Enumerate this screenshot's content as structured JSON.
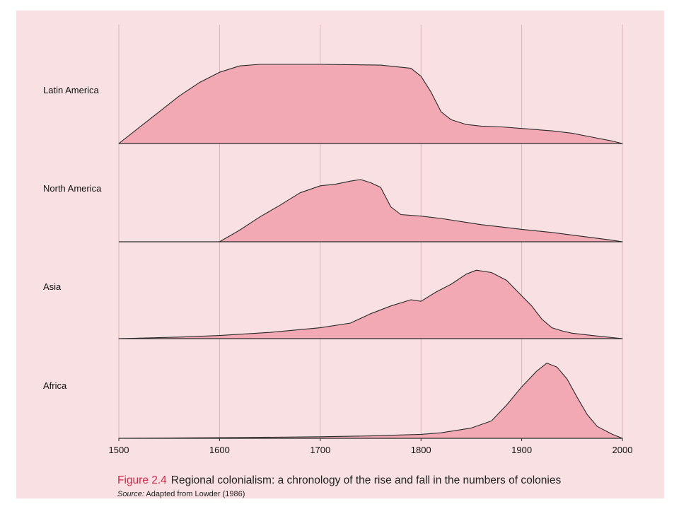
{
  "figure": {
    "number": "Figure 2.4",
    "caption": "Regional colonialism: a chronology of the rise and fall in the numbers of colonies",
    "source_label": "Source:",
    "source_text": "Adapted from Lowder (1986)"
  },
  "colors": {
    "background": "#f9e1e3",
    "area_fill": "#f2a9b3",
    "stroke": "#2a2a2a",
    "caption_accent": "#cc2a48"
  },
  "chart_data": {
    "type": "area",
    "title": "",
    "xlabel": "",
    "ylabel": "",
    "xlim": [
      1500,
      2000
    ],
    "xticks": [
      1500,
      1600,
      1700,
      1800,
      1900,
      2000
    ],
    "grid": "vertical",
    "series": [
      {
        "name": "Latin America",
        "points": [
          [
            1500,
            0
          ],
          [
            1520,
            0.2
          ],
          [
            1540,
            0.4
          ],
          [
            1560,
            0.6
          ],
          [
            1580,
            0.77
          ],
          [
            1600,
            0.9
          ],
          [
            1620,
            0.98
          ],
          [
            1640,
            1.0
          ],
          [
            1700,
            1.0
          ],
          [
            1760,
            0.99
          ],
          [
            1790,
            0.95
          ],
          [
            1800,
            0.85
          ],
          [
            1810,
            0.65
          ],
          [
            1820,
            0.4
          ],
          [
            1830,
            0.3
          ],
          [
            1845,
            0.24
          ],
          [
            1860,
            0.22
          ],
          [
            1880,
            0.21
          ],
          [
            1900,
            0.19
          ],
          [
            1930,
            0.16
          ],
          [
            1950,
            0.13
          ],
          [
            1970,
            0.08
          ],
          [
            1990,
            0.03
          ],
          [
            2000,
            0
          ]
        ]
      },
      {
        "name": "North America",
        "points": [
          [
            1600,
            0
          ],
          [
            1620,
            0.15
          ],
          [
            1640,
            0.32
          ],
          [
            1660,
            0.47
          ],
          [
            1680,
            0.63
          ],
          [
            1700,
            0.72
          ],
          [
            1715,
            0.74
          ],
          [
            1730,
            0.78
          ],
          [
            1740,
            0.8
          ],
          [
            1750,
            0.76
          ],
          [
            1760,
            0.7
          ],
          [
            1770,
            0.45
          ],
          [
            1780,
            0.35
          ],
          [
            1800,
            0.33
          ],
          [
            1820,
            0.3
          ],
          [
            1840,
            0.26
          ],
          [
            1860,
            0.22
          ],
          [
            1880,
            0.19
          ],
          [
            1900,
            0.16
          ],
          [
            1930,
            0.12
          ],
          [
            1960,
            0.07
          ],
          [
            1990,
            0.02
          ],
          [
            2000,
            0
          ]
        ]
      },
      {
        "name": "Asia",
        "points": [
          [
            1500,
            0
          ],
          [
            1560,
            0.02
          ],
          [
            1600,
            0.04
          ],
          [
            1650,
            0.08
          ],
          [
            1700,
            0.14
          ],
          [
            1730,
            0.2
          ],
          [
            1750,
            0.32
          ],
          [
            1770,
            0.42
          ],
          [
            1790,
            0.5
          ],
          [
            1800,
            0.48
          ],
          [
            1815,
            0.6
          ],
          [
            1830,
            0.7
          ],
          [
            1845,
            0.83
          ],
          [
            1855,
            0.88
          ],
          [
            1870,
            0.85
          ],
          [
            1885,
            0.75
          ],
          [
            1900,
            0.55
          ],
          [
            1910,
            0.42
          ],
          [
            1920,
            0.25
          ],
          [
            1930,
            0.14
          ],
          [
            1940,
            0.1
          ],
          [
            1950,
            0.07
          ],
          [
            1970,
            0.04
          ],
          [
            2000,
            0
          ]
        ]
      },
      {
        "name": "Africa",
        "points": [
          [
            1500,
            0
          ],
          [
            1620,
            0.01
          ],
          [
            1700,
            0.02
          ],
          [
            1750,
            0.03
          ],
          [
            1800,
            0.05
          ],
          [
            1820,
            0.07
          ],
          [
            1850,
            0.13
          ],
          [
            1870,
            0.22
          ],
          [
            1885,
            0.42
          ],
          [
            1900,
            0.65
          ],
          [
            1915,
            0.85
          ],
          [
            1925,
            0.95
          ],
          [
            1935,
            0.9
          ],
          [
            1945,
            0.75
          ],
          [
            1955,
            0.52
          ],
          [
            1965,
            0.3
          ],
          [
            1975,
            0.15
          ],
          [
            1990,
            0.05
          ],
          [
            2000,
            0
          ]
        ]
      }
    ]
  }
}
